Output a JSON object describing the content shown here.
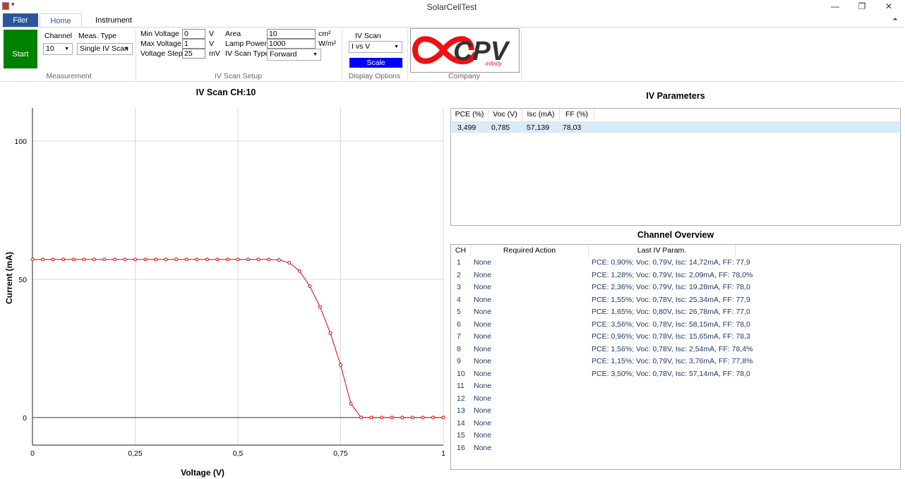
{
  "window": {
    "title": "SolarCellTest",
    "minimize": "—",
    "restore": "❐",
    "close": "✕"
  },
  "tabs": {
    "file": "Filer",
    "home": "Home",
    "instrument": "Instrument"
  },
  "ribbon": {
    "start_label": "Start",
    "channel_label": "Channel",
    "channel_value": "10",
    "meas_type_label": "Meas. Type",
    "meas_type_value": "Single IV Scan",
    "measurement_group": "Measurement",
    "min_voltage_label": "Min Voltage",
    "min_voltage_value": "0",
    "min_voltage_unit": "V",
    "max_voltage_label": "Max Voltage",
    "max_voltage_value": "1",
    "max_voltage_unit": "V",
    "voltage_step_label": "Voltage Step",
    "voltage_step_value": "25",
    "voltage_step_unit": "mV",
    "area_label": "Area",
    "area_value": "10",
    "area_unit": "cm²",
    "lamp_power_label": "Lamp Power",
    "lamp_power_value": "1000",
    "lamp_power_unit": "W/m²",
    "scan_type_label": "IV Scan Type",
    "scan_type_value": "Forward",
    "iv_setup_group": "IV Scan Setup",
    "iv_scan_label": "IV Scan",
    "iv_scan_value": "I vs V",
    "scale_label": "Scale",
    "display_group": "Display Options",
    "company_group": "Company",
    "logo_text": "CPV",
    "logo_sub": "infinity"
  },
  "chart_data": {
    "type": "line",
    "title": "IV Scan CH:10",
    "xlabel": "Voltage (V)",
    "ylabel": "Current (mA)",
    "xlim": [
      0,
      1
    ],
    "ylim": [
      -10,
      112
    ],
    "xticks": [
      "0",
      "0,25",
      "0,5",
      "0,75",
      "1"
    ],
    "yticks": [
      "0",
      "50",
      "100"
    ],
    "grid": true,
    "color": "#e00000",
    "x": [
      0,
      0.025,
      0.05,
      0.075,
      0.1,
      0.125,
      0.15,
      0.175,
      0.2,
      0.225,
      0.25,
      0.275,
      0.3,
      0.325,
      0.35,
      0.375,
      0.4,
      0.425,
      0.45,
      0.475,
      0.5,
      0.525,
      0.55,
      0.575,
      0.6,
      0.625,
      0.65,
      0.675,
      0.7,
      0.725,
      0.75,
      0.775,
      0.8,
      0.825,
      0.85,
      0.875,
      0.9,
      0.925,
      0.95,
      0.975,
      1
    ],
    "y": [
      57.2,
      57.2,
      57.2,
      57.2,
      57.2,
      57.2,
      57.2,
      57.2,
      57.2,
      57.2,
      57.2,
      57.2,
      57.2,
      57.2,
      57.2,
      57.2,
      57.2,
      57.2,
      57.2,
      57.2,
      57.2,
      57.2,
      57.2,
      57.2,
      57.0,
      56.0,
      53.0,
      47.5,
      40.0,
      30.5,
      19.0,
      5.0,
      0,
      0,
      0,
      0,
      0,
      0,
      0,
      0,
      0
    ]
  },
  "iv_parameters": {
    "title": "IV Parameters",
    "headers": [
      "PCE (%)",
      "Voc (V)",
      "Isc (mA)",
      "FF (%)"
    ],
    "row": [
      "3,499",
      "0,785",
      "57,139",
      "78,03"
    ]
  },
  "channel_overview": {
    "title": "Channel Overview",
    "headers": [
      "CH",
      "Required Action",
      "Last IV Param."
    ],
    "rows": [
      [
        "1",
        "None",
        "PCE: 0,90%; Voc: 0,79V, Isc: 14,72mA, FF: 77,9"
      ],
      [
        "2",
        "None",
        "PCE: 1,28%; Voc: 0,79V, Isc: 2,09mA, FF: 78,0%"
      ],
      [
        "3",
        "None",
        "PCE: 2,36%; Voc: 0,79V, Isc: 19,28mA, FF: 78,0"
      ],
      [
        "4",
        "None",
        "PCE: 1,55%; Voc: 0,78V, Isc: 25,34mA, FF: 77,9"
      ],
      [
        "5",
        "None",
        "PCE: 1,65%; Voc: 0,80V, Isc: 26,78mA, FF: 77,0"
      ],
      [
        "6",
        "None",
        "PCE: 3,56%; Voc: 0,78V, Isc: 58,15mA, FF: 78,0"
      ],
      [
        "7",
        "None",
        "PCE: 0,96%; Voc: 0,78V, Isc: 15,65mA, FF: 78,3"
      ],
      [
        "8",
        "None",
        "PCE: 1,56%; Voc: 0,78V, Isc: 2,54mA, FF: 78,4%"
      ],
      [
        "9",
        "None",
        "PCE: 1,15%; Voc: 0,79V, Isc: 3,76mA, FF: 77,8%"
      ],
      [
        "10",
        "None",
        "PCE: 3,50%; Voc: 0,78V, Isc: 57,14mA, FF: 78,0"
      ],
      [
        "11",
        "None",
        ""
      ],
      [
        "12",
        "None",
        ""
      ],
      [
        "13",
        "None",
        ""
      ],
      [
        "14",
        "None",
        ""
      ],
      [
        "15",
        "None",
        ""
      ],
      [
        "16",
        "None",
        ""
      ]
    ]
  }
}
